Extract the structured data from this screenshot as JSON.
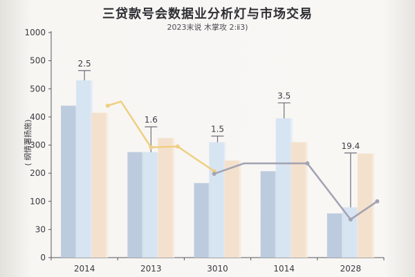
{
  "chart_data": {
    "type": "bar",
    "title": "三贷款号会数据业分析灯与市场交易",
    "subtitle": "2023末说 木掌攻 2:ⅱ3)",
    "ylabel": "( 纲情署扬施)",
    "xlabel": "",
    "y_ticks": [
      "0",
      "30",
      "100",
      "200",
      "300",
      "400",
      "500",
      "500",
      "1000"
    ],
    "categories": [
      "2014",
      "2013",
      "3010",
      "1014",
      "2028"
    ],
    "series": [
      {
        "values": [
          440,
          275,
          165,
          207,
          70
        ],
        "color": "#b9c8dc"
      },
      {
        "values": [
          530,
          275,
          310,
          395,
          85
        ],
        "color": "#d5e3f0"
      },
      {
        "values": [
          415,
          325,
          245,
          310,
          270
        ],
        "color": "#f3dfca"
      }
    ],
    "error_bars": [
      {
        "category": "2014",
        "top": 565
      },
      {
        "category": "2013",
        "top": 365
      },
      {
        "category": "3010",
        "top": 332
      },
      {
        "category": "1014",
        "top": 450
      },
      {
        "category": "2028",
        "top": 272
      }
    ],
    "data_labels": [
      "2.5",
      "1.6",
      "1.5",
      "3.5",
      "19.4"
    ],
    "lines": [
      {
        "color": "#f0cf83",
        "points": [
          [
            0.35,
            440
          ],
          [
            0.55,
            455
          ],
          [
            1.0,
            292
          ],
          [
            1.4,
            295
          ],
          [
            1.95,
            207
          ]
        ]
      },
      {
        "color": "#a3a3b3",
        "points": [
          [
            1.95,
            198
          ],
          [
            2.4,
            235
          ],
          [
            3.35,
            235
          ],
          [
            4.0,
            55
          ],
          [
            4.4,
            100
          ]
        ]
      }
    ],
    "grid": false
  }
}
